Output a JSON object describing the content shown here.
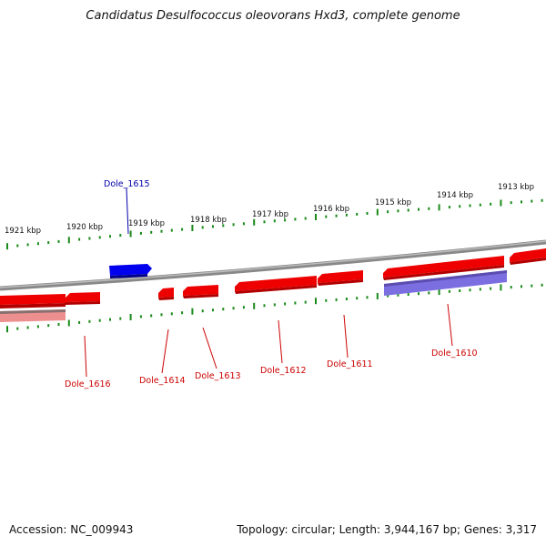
{
  "title": "Candidatus Desulfococcus oleovorans Hxd3, complete genome",
  "footer": {
    "accession": "Accession: NC_009943",
    "topology": "Topology: circular; Length: 3,944,167 bp; Genes: 3,317"
  },
  "colors": {
    "backbone": "#8a8a8a",
    "tick": "#1a8a1a",
    "gene_forward": "#ee0000",
    "gene_highlight": "#0000ee",
    "gene_label_red": "#cc0000",
    "gene_label_blue": "#0000aa",
    "rna_pink": "#ee8f8f",
    "rna_purple": "#6a5acd"
  },
  "kbp_ticks": [
    "1921 kbp",
    "1920 kbp",
    "1919 kbp",
    "1918 kbp",
    "1917 kbp",
    "1916 kbp",
    "1915 kbp",
    "1914 kbp",
    "1913 kbp"
  ],
  "gene_labels": [
    "Dole_1615",
    "Dole_1616",
    "Dole_1614",
    "Dole_1613",
    "Dole_1612",
    "Dole_1611",
    "Dole_1610"
  ]
}
